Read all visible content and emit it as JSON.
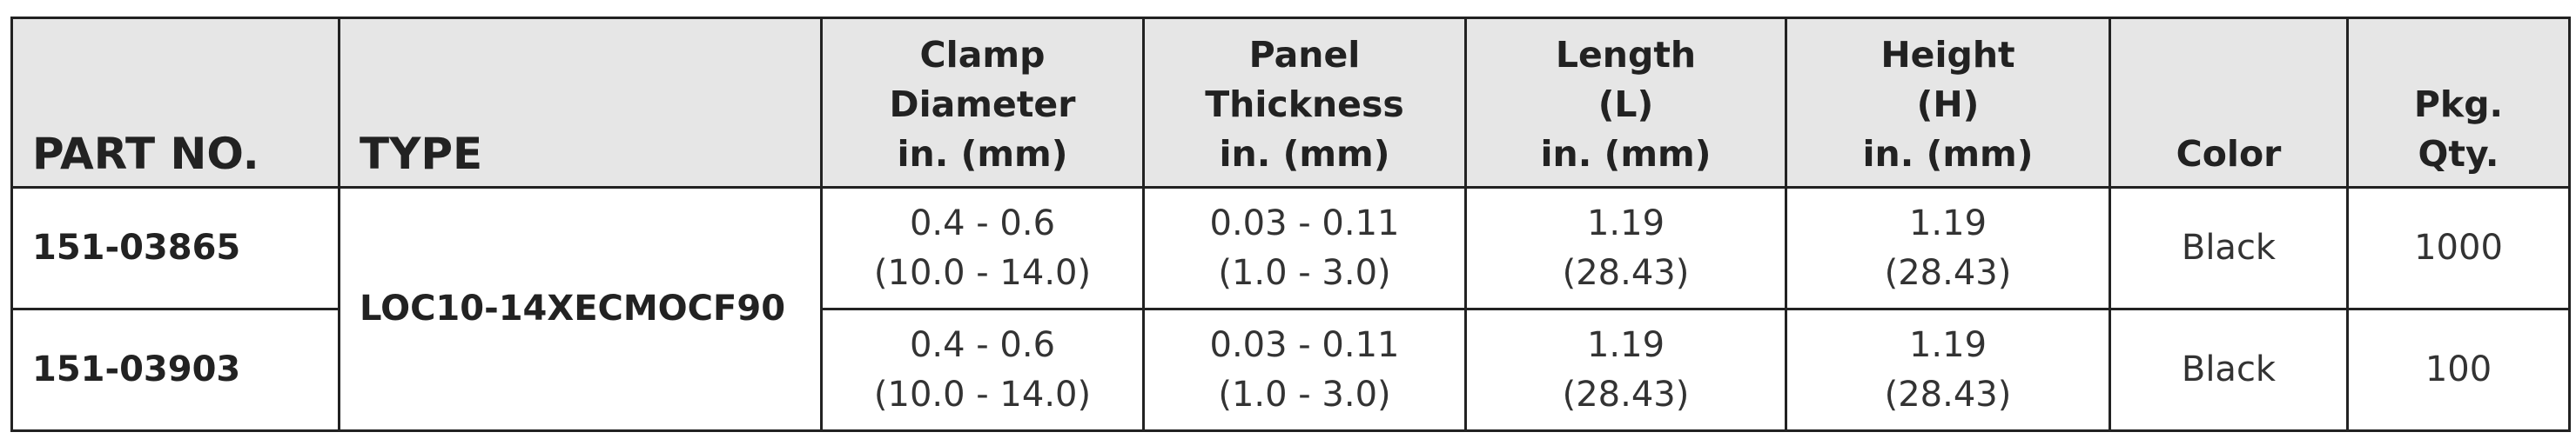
{
  "table": {
    "headers": [
      [
        "PART NO."
      ],
      [
        "TYPE"
      ],
      [
        "Clamp",
        "Diameter",
        "in. (mm)"
      ],
      [
        "Panel",
        "Thickness",
        "in. (mm)"
      ],
      [
        "Length",
        "(L)",
        "in. (mm)"
      ],
      [
        "Height",
        "(H)",
        "in. (mm)"
      ],
      [
        "Color"
      ],
      [
        "Pkg.",
        "Qty."
      ]
    ],
    "type": "LOC10-14XECMOCF90",
    "rows": [
      {
        "part_no": "151-03865",
        "cells": [
          [
            "0.4 - 0.6",
            "(10.0 - 14.0)"
          ],
          [
            "0.03 - 0.11",
            "(1.0 - 3.0)"
          ],
          [
            "1.19",
            "(28.43)"
          ],
          [
            "1.19",
            "(28.43)"
          ],
          [
            "Black"
          ],
          [
            "1000"
          ]
        ]
      },
      {
        "part_no": "151-03903",
        "cells": [
          [
            "0.4 - 0.6",
            "(10.0 - 14.0)"
          ],
          [
            "0.03 - 0.11",
            "(1.0 - 3.0)"
          ],
          [
            "1.19",
            "(28.43)"
          ],
          [
            "1.19",
            "(28.43)"
          ],
          [
            "Black"
          ],
          [
            "100"
          ]
        ]
      }
    ]
  }
}
